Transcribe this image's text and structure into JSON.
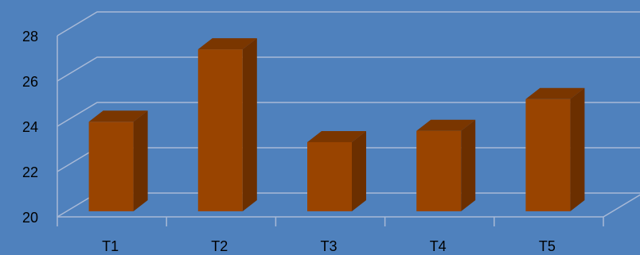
{
  "chart_data": {
    "type": "bar",
    "categories": [
      "T1",
      "T2",
      "T3",
      "T4",
      "T5"
    ],
    "values": [
      24.2,
      27.4,
      23.3,
      23.8,
      25.2
    ],
    "ylim": [
      20,
      28
    ],
    "yticks": [
      20,
      22,
      24,
      26,
      28
    ],
    "grid": true,
    "legend": "none",
    "style": "3d-column"
  },
  "colors": {
    "background": "#4F81BD",
    "bar_front": "#994400",
    "bar_side": "#6B2F00",
    "bar_top": "#7A3600",
    "gridline": "#A8B9D6"
  }
}
